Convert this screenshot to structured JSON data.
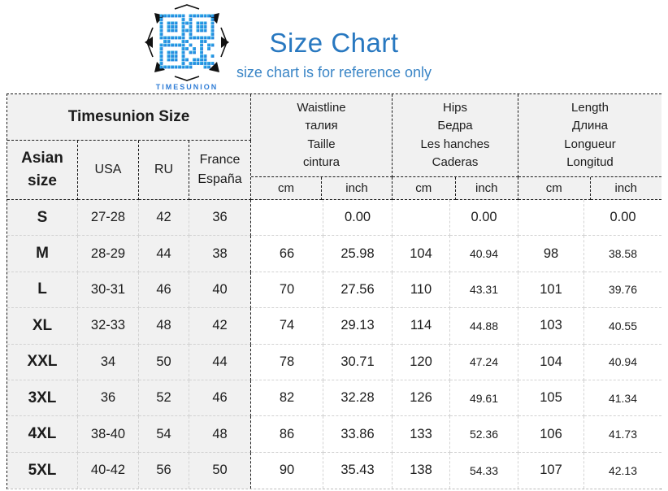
{
  "logo": {
    "brand": "TIMESUNION"
  },
  "title": {
    "text": "Size Chart",
    "subtitle": "size chart is for reference only"
  },
  "colors": {
    "accent_blue": "#2878c0",
    "brand_blue": "#2e7cd6",
    "qr_cyan": "#3ec6f0",
    "qr_blue": "#1976d8",
    "header_bg": "#f1f1f1",
    "border_dark": "#1a1a1a",
    "border_light": "#d2d2d2"
  },
  "chart_data": {
    "type": "table",
    "title": "Size Chart",
    "note": "size chart is for reference only",
    "left_group_title": "Timesunion Size",
    "size_columns": [
      "Asian\nsize",
      "USA",
      "RU",
      "France\nEspaña"
    ],
    "measure_groups": [
      {
        "name": "Waistline",
        "label": "Waistline\nталия\nTaille\ncintura",
        "units": [
          "cm",
          "inch"
        ]
      },
      {
        "name": "Hips",
        "label": "Hips\nБедра\nLes hanches\nCaderas",
        "units": [
          "cm",
          "inch"
        ]
      },
      {
        "name": "Length",
        "label": "Length\nДлина\nLongueur\nLongitud",
        "units": [
          "cm",
          "inch"
        ]
      }
    ],
    "columns": [
      "asian_size",
      "usa",
      "ru",
      "france_espana",
      "waist_cm",
      "waist_inch",
      "hips_cm",
      "hips_inch",
      "length_cm",
      "length_inch"
    ],
    "rows": [
      [
        "S",
        "27-28",
        "42",
        "36",
        "",
        "0.00",
        "",
        "0.00",
        "",
        "0.00"
      ],
      [
        "M",
        "28-29",
        "44",
        "38",
        "66",
        "25.98",
        "104",
        "40.94",
        "98",
        "38.58"
      ],
      [
        "L",
        "30-31",
        "46",
        "40",
        "70",
        "27.56",
        "110",
        "43.31",
        "101",
        "39.76"
      ],
      [
        "XL",
        "32-33",
        "48",
        "42",
        "74",
        "29.13",
        "114",
        "44.88",
        "103",
        "40.55"
      ],
      [
        "XXL",
        "34",
        "50",
        "44",
        "78",
        "30.71",
        "120",
        "47.24",
        "104",
        "40.94"
      ],
      [
        "3XL",
        "36",
        "52",
        "46",
        "82",
        "32.28",
        "126",
        "49.61",
        "105",
        "41.34"
      ],
      [
        "4XL",
        "38-40",
        "54",
        "48",
        "86",
        "33.86",
        "133",
        "52.36",
        "106",
        "41.73"
      ],
      [
        "5XL",
        "40-42",
        "56",
        "50",
        "90",
        "35.43",
        "138",
        "54.33",
        "107",
        "42.13"
      ]
    ]
  }
}
